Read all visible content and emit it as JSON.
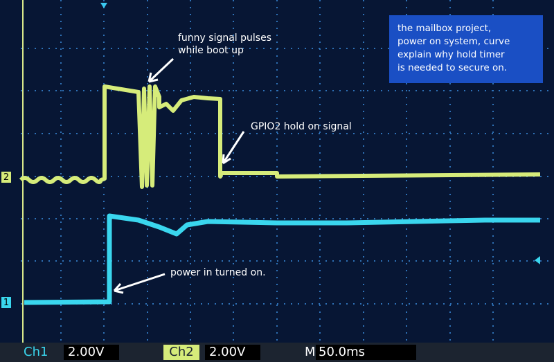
{
  "annotations": {
    "pulses": [
      "funny signal pulses",
      "while boot up"
    ],
    "gpio": [
      "GPIO2  hold on signal"
    ],
    "power": [
      "power in  turned on."
    ]
  },
  "info_box": [
    "the mailbox project,",
    "power on system, curve",
    "explain why hold timer",
    "is needed to secure on."
  ],
  "channel_markers": {
    "ch1": "1",
    "ch2": "2"
  },
  "status_bar": {
    "ch1_label": "Ch1",
    "ch1_scale": "2.00V",
    "ch2_label": "Ch2",
    "ch2_scale": "2.00V",
    "time_label": "M",
    "time_scale": "50.0ms"
  }
}
